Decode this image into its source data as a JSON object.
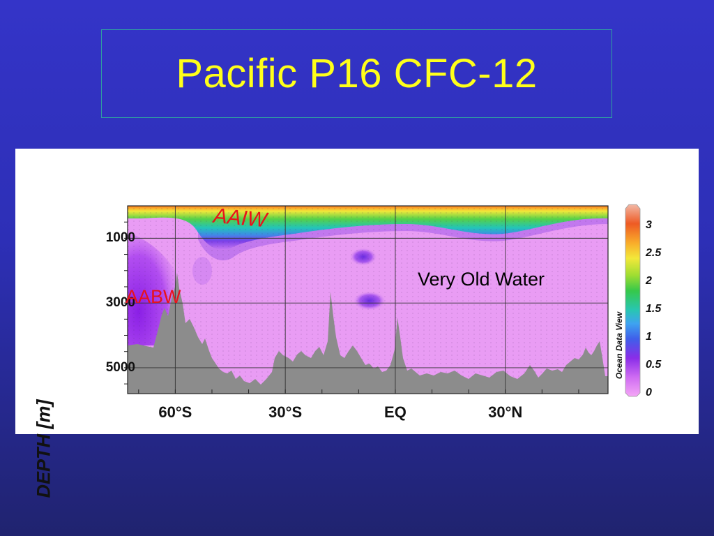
{
  "slide": {
    "title": "Pacific P16 CFC-12"
  },
  "chart_data": {
    "type": "heatmap",
    "title": "",
    "ylabel": "DEPTH [m]",
    "xlabel": "",
    "x_axis": {
      "ticks": [
        "60°S",
        "30°S",
        "EQ",
        "30°N"
      ],
      "tick_values": [
        -60,
        -30,
        0,
        30
      ],
      "range": [
        -73,
        58
      ]
    },
    "y_axis": {
      "ticks": [
        "1000",
        "3000",
        "5000"
      ],
      "tick_values": [
        1000,
        3000,
        5000
      ],
      "range": [
        0,
        5800
      ],
      "inverted": true
    },
    "colorbar": {
      "label": "Ocean Data View",
      "ticks": [
        "3",
        "2.5",
        "2",
        "1.5",
        "1",
        "0.5",
        "0"
      ],
      "tick_values": [
        3,
        2.5,
        2,
        1.5,
        1,
        0.5,
        0
      ],
      "range": [
        0,
        3.3
      ]
    },
    "annotations": [
      {
        "id": "aaiw",
        "text": "AAIW"
      },
      {
        "id": "aabw",
        "text": "AABW"
      },
      {
        "id": "very-old",
        "text": "Very Old Water"
      }
    ],
    "grid": true,
    "colors": {
      "seafloor": "#8c8c8c",
      "low": "#e99cf4",
      "high": "#d62a22"
    }
  }
}
